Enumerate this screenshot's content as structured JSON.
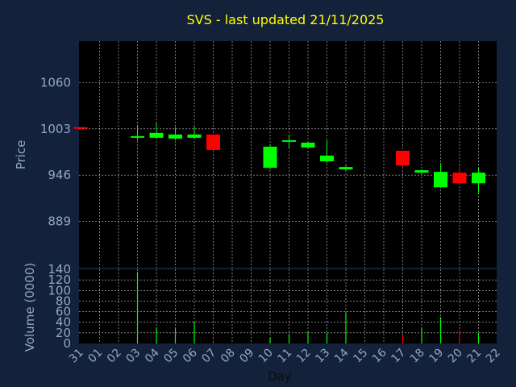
{
  "chart_data": {
    "type": "candlestick",
    "title": "SVS - last updated 21/11/2025",
    "xlabel": "Day",
    "price_panel": {
      "ylabel": "Price",
      "yticks": [
        889,
        946,
        1003,
        1060
      ],
      "ylim": [
        832,
        1111
      ],
      "grid": true
    },
    "volume_panel": {
      "ylabel": "Volume (0000)",
      "yticks": [
        0,
        20,
        40,
        60,
        80,
        100,
        120,
        140
      ],
      "ylim": [
        0,
        140
      ],
      "grid": true
    },
    "x_tick_labels": [
      "31",
      "01",
      "02",
      "03",
      "04",
      "05",
      "06",
      "07",
      "08",
      "09",
      "10",
      "11",
      "12",
      "13",
      "14",
      "15",
      "16",
      "17",
      "18",
      "19",
      "20",
      "21",
      "22"
    ],
    "candles": [
      {
        "x": 0,
        "open": 1005,
        "close": 1004,
        "high": 1005,
        "low": 1004,
        "volume": 0
      },
      {
        "x": 3,
        "open": 992,
        "close": 994,
        "high": 1007,
        "low": 989,
        "volume": 135
      },
      {
        "x": 4,
        "open": 992,
        "close": 998,
        "high": 1011,
        "low": 991,
        "volume": 30
      },
      {
        "x": 5,
        "open": 991,
        "close": 996,
        "high": 1005,
        "low": 989,
        "volume": 28
      },
      {
        "x": 6,
        "open": 992,
        "close": 996,
        "high": 1006,
        "low": 990,
        "volume": 42
      },
      {
        "x": 7,
        "open": 996,
        "close": 977,
        "high": 996,
        "low": 975,
        "volume": 6
      },
      {
        "x": 10,
        "open": 955,
        "close": 981,
        "high": 984,
        "low": 953,
        "volume": 12
      },
      {
        "x": 11,
        "open": 988,
        "close": 989,
        "high": 995,
        "low": 979,
        "volume": 18
      },
      {
        "x": 12,
        "open": 980,
        "close": 986,
        "high": 987,
        "low": 978,
        "volume": 22
      },
      {
        "x": 13,
        "open": 963,
        "close": 970,
        "high": 989,
        "low": 961,
        "volume": 20
      },
      {
        "x": 14,
        "open": 953,
        "close": 956,
        "high": 958,
        "low": 950,
        "volume": 58
      },
      {
        "x": 17,
        "open": 976,
        "close": 958,
        "high": 976,
        "low": 955,
        "volume": 15
      },
      {
        "x": 18,
        "open": 949,
        "close": 952,
        "high": 953,
        "low": 948,
        "volume": 30
      },
      {
        "x": 19,
        "open": 931,
        "close": 950,
        "high": 961,
        "low": 930,
        "volume": 50
      },
      {
        "x": 20,
        "open": 949,
        "close": 936,
        "high": 958,
        "low": 935,
        "volume": 25
      },
      {
        "x": 21,
        "open": 936,
        "close": 949,
        "high": 955,
        "low": 924,
        "volume": 20
      }
    ]
  },
  "colors": {
    "background": "#13213a",
    "plot_bg": "#000000",
    "up": "#00ff00",
    "down": "#ff0000",
    "grid": "#ffffff",
    "tick_text": "#8fa8c8",
    "title": "#ffff00"
  }
}
